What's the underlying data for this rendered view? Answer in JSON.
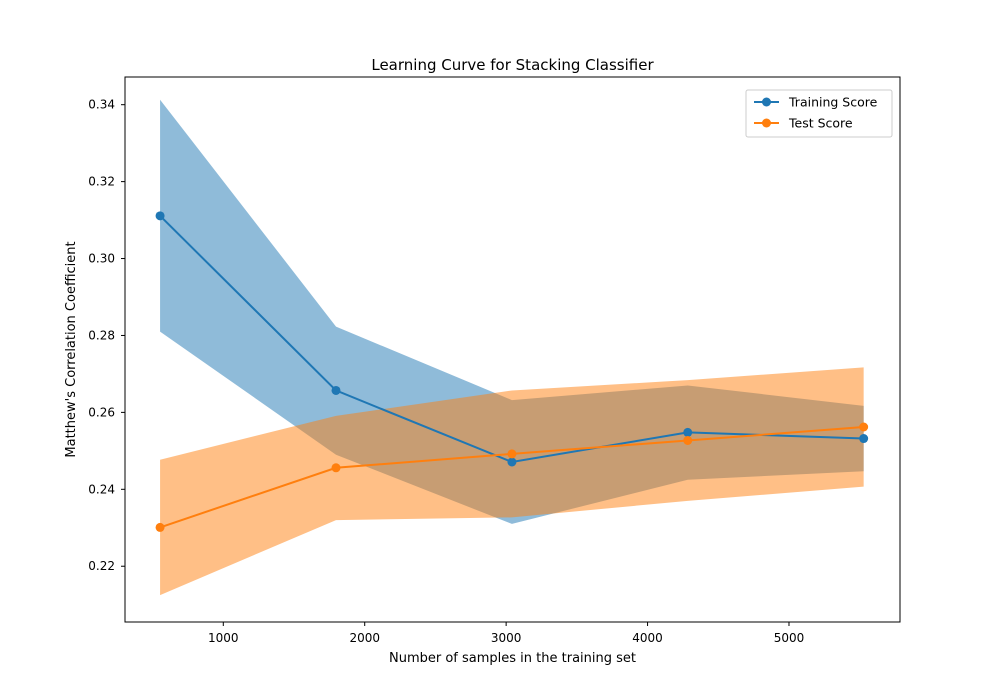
{
  "chart_data": {
    "type": "line",
    "title": "Learning Curve for Stacking Classifier",
    "xlabel": "Number of samples in the training set",
    "ylabel": "Matthew's Correlation Coefficient",
    "xlim": [
      305,
      5785
    ],
    "ylim": [
      0.2055,
      0.3472
    ],
    "x_ticks": [
      1000,
      2000,
      3000,
      4000,
      5000
    ],
    "y_ticks": [
      0.22,
      0.24,
      0.26,
      0.28,
      0.3,
      0.32,
      0.34
    ],
    "x_tick_labels": [
      "1000",
      "2000",
      "3000",
      "4000",
      "5000"
    ],
    "y_tick_labels": [
      "0.22",
      "0.24",
      "0.26",
      "0.28",
      "0.30",
      "0.32",
      "0.34"
    ],
    "x": [
      553,
      1797,
      3041,
      4284,
      5528
    ],
    "series": [
      {
        "name": "Training Score",
        "color": "#1f77b4",
        "band_color": "#1f77b4",
        "values": [
          0.3111,
          0.2657,
          0.2471,
          0.2548,
          0.2532
        ],
        "lower": [
          0.281,
          0.249,
          0.231,
          0.2425,
          0.2447
        ],
        "upper": [
          0.3413,
          0.2823,
          0.2632,
          0.267,
          0.2617
        ]
      },
      {
        "name": "Test Score",
        "color": "#ff7f0e",
        "band_color": "#ff7f0e",
        "values": [
          0.2301,
          0.2456,
          0.2492,
          0.2527,
          0.2562
        ],
        "lower": [
          0.2125,
          0.232,
          0.2327,
          0.237,
          0.2407
        ],
        "upper": [
          0.2477,
          0.2591,
          0.2657,
          0.2684,
          0.2717
        ]
      }
    ],
    "grid": false,
    "legend": {
      "placement": "top-right"
    }
  }
}
